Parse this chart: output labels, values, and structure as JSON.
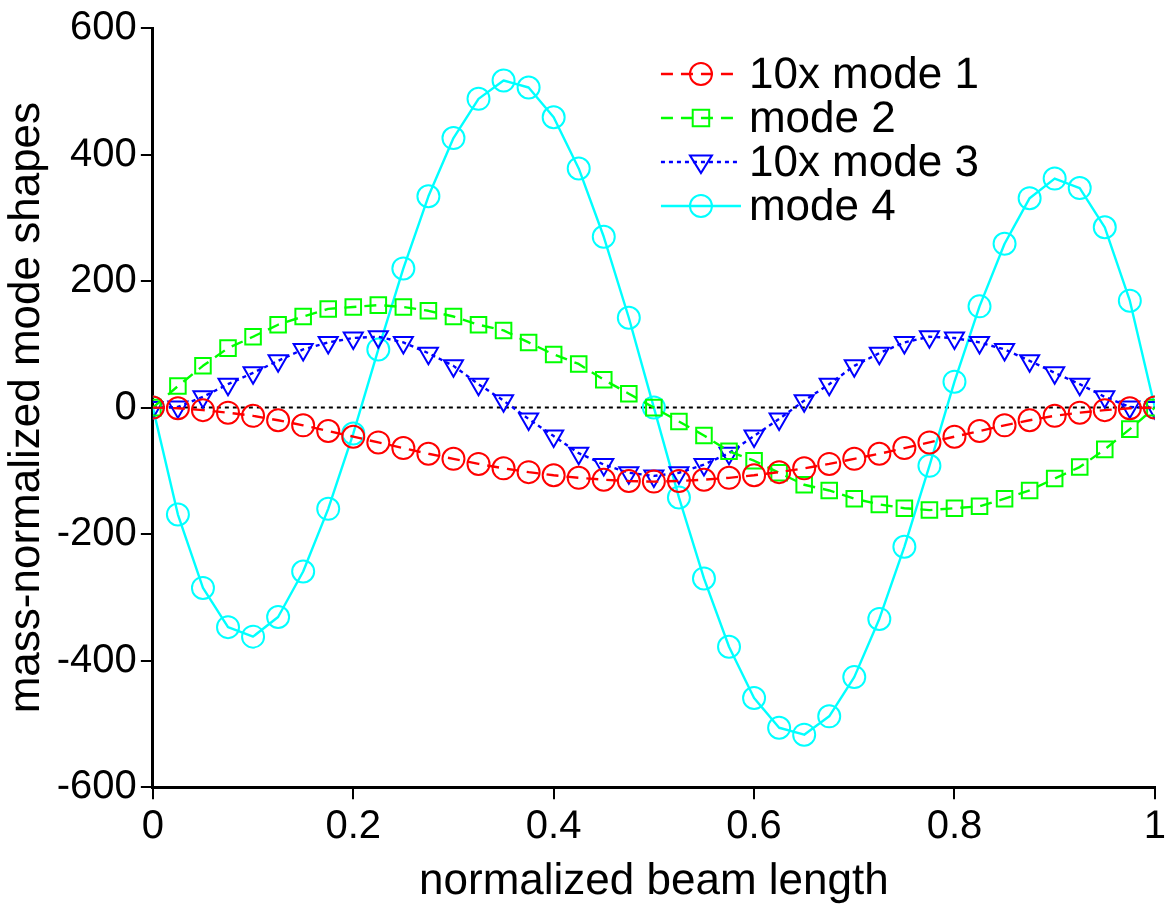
{
  "chart_data": {
    "type": "line",
    "xlabel": "normalized beam length",
    "ylabel": "mass-normalized mode shapes",
    "x": [
      0,
      0.025,
      0.05,
      0.075,
      0.1,
      0.125,
      0.15,
      0.175,
      0.2,
      0.225,
      0.25,
      0.275,
      0.3,
      0.325,
      0.35,
      0.375,
      0.4,
      0.425,
      0.45,
      0.475,
      0.5,
      0.525,
      0.55,
      0.575,
      0.6,
      0.625,
      0.65,
      0.675,
      0.7,
      0.725,
      0.75,
      0.775,
      0.8,
      0.825,
      0.85,
      0.875,
      0.9,
      0.925,
      0.95,
      0.975,
      1
    ],
    "series": [
      {
        "name": "10x mode 1",
        "color": "#ff0000",
        "marker": "circle",
        "line_style": "dashed",
        "values": [
          0,
          -1,
          -4,
          -8,
          -13,
          -20,
          -28,
          -37,
          -46,
          -55,
          -64,
          -73,
          -81,
          -89,
          -96,
          -102,
          -107,
          -111,
          -114,
          -116,
          -117,
          -116,
          -114,
          -111,
          -107,
          -102,
          -96,
          -89,
          -81,
          -73,
          -64,
          -55,
          -46,
          -37,
          -28,
          -20,
          -13,
          -8,
          -4,
          -1,
          0
        ]
      },
      {
        "name": "mode 2",
        "color": "#00ff00",
        "marker": "square",
        "line_style": "dashed",
        "values": [
          0,
          34,
          66,
          94,
          112,
          131,
          144,
          156,
          159,
          162,
          159,
          153,
          144,
          131,
          122,
          103,
          84,
          69,
          44,
          22,
          0,
          -22,
          -44,
          -69,
          -84,
          -103,
          -122,
          -131,
          -144,
          -153,
          -159,
          -162,
          -159,
          -156,
          -144,
          -131,
          -112,
          -94,
          -66,
          -34,
          0
        ]
      },
      {
        "name": "10x mode 3",
        "color": "#0000ff",
        "marker": "triangle",
        "line_style": "dotted",
        "values": [
          0,
          1,
          17,
          37,
          55,
          74,
          92,
          103,
          110,
          112,
          103,
          86,
          66,
          37,
          11,
          -18,
          -45,
          -72,
          -90,
          -103,
          -108,
          -103,
          -90,
          -72,
          -45,
          -18,
          11,
          37,
          66,
          86,
          103,
          112,
          110,
          103,
          92,
          74,
          55,
          37,
          17,
          1,
          0
        ]
      },
      {
        "name": "mode 4",
        "color": "#00ffff",
        "marker": "circle",
        "line_style": "solid",
        "values": [
          0,
          -169,
          -285,
          -347,
          -362,
          -331,
          -259,
          -160,
          -41,
          92,
          220,
          334,
          426,
          488,
          517,
          506,
          459,
          378,
          270,
          142,
          0,
          -142,
          -270,
          -378,
          -459,
          -506,
          -517,
          -488,
          -426,
          -334,
          -220,
          -92,
          41,
          160,
          259,
          331,
          362,
          347,
          285,
          169,
          0
        ]
      }
    ],
    "xlim": [
      0,
      1
    ],
    "xticks": [
      0,
      0.2,
      0.4,
      0.6,
      0.8,
      1
    ],
    "ylim": [
      -600,
      600
    ],
    "yticks": [
      -600,
      -400,
      -200,
      0,
      200,
      400,
      600
    ],
    "ref_lines": [
      {
        "axis": "y",
        "value": 0,
        "color": "#000000",
        "line_style": "dotted"
      }
    ],
    "grid": false,
    "legend": "top right"
  }
}
